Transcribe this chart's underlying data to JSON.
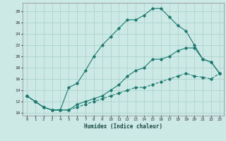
{
  "xlabel": "Humidex (Indice chaleur)",
  "background_color": "#cce9e5",
  "grid_color": "#aed4cf",
  "line_color": "#1a7a6e",
  "xlim": [
    -0.5,
    23.5
  ],
  "ylim": [
    9.5,
    29.5
  ],
  "yticks": [
    10,
    12,
    14,
    16,
    18,
    20,
    22,
    24,
    26,
    28
  ],
  "xticks": [
    0,
    1,
    2,
    3,
    4,
    5,
    6,
    7,
    8,
    9,
    10,
    11,
    12,
    13,
    14,
    15,
    16,
    17,
    18,
    19,
    20,
    21,
    22,
    23
  ],
  "line1_x": [
    0,
    1,
    2,
    3,
    4,
    5,
    6,
    7,
    8,
    9,
    10,
    11,
    12,
    13,
    14,
    15,
    16,
    17,
    18,
    19,
    20,
    21,
    22,
    23
  ],
  "line1_y": [
    13,
    12,
    11,
    10.5,
    10.5,
    14.5,
    15.2,
    17.5,
    20,
    22,
    23.5,
    25,
    26.5,
    26.5,
    27.3,
    28.5,
    28.5,
    27,
    25.5,
    24.5,
    22,
    19.5,
    19,
    17
  ],
  "line2_x": [
    0,
    1,
    2,
    3,
    4,
    5,
    6,
    7,
    8,
    9,
    10,
    11,
    12,
    13,
    14,
    15,
    16,
    17,
    18,
    19,
    20,
    21,
    22,
    23
  ],
  "line2_y": [
    13,
    12,
    11,
    10.5,
    10.5,
    10.5,
    11.5,
    12,
    12.5,
    13,
    14,
    15,
    16.5,
    17.5,
    18,
    19.5,
    19.5,
    20,
    21,
    21.5,
    21.5,
    19.5,
    19,
    17
  ],
  "line3_x": [
    0,
    1,
    2,
    3,
    4,
    5,
    6,
    7,
    8,
    9,
    10,
    11,
    12,
    13,
    14,
    15,
    16,
    17,
    18,
    19,
    20,
    21,
    22,
    23
  ],
  "line3_y": [
    13,
    12,
    11,
    10.5,
    10.5,
    10.5,
    11,
    11.5,
    12,
    12.5,
    13,
    13.5,
    14,
    14.5,
    14.5,
    15,
    15.5,
    16,
    16.5,
    17,
    16.5,
    16.3,
    16,
    17
  ]
}
